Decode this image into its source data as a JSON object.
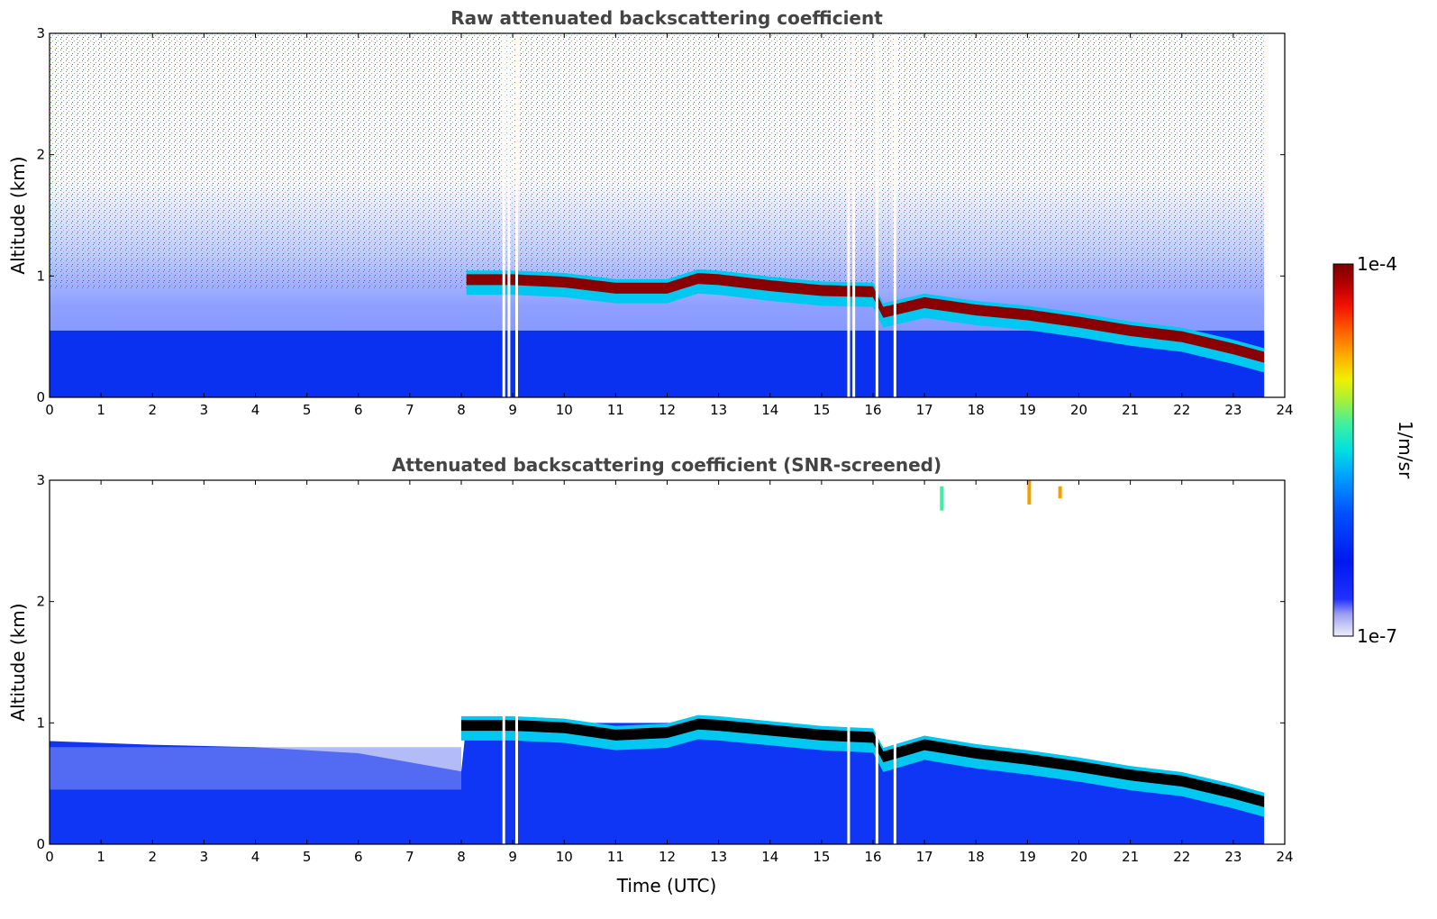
{
  "chart_data": [
    {
      "type": "heatmap",
      "title": "Raw attenuated backscattering coefficient",
      "xlabel": "",
      "ylabel": "Altitude (km)",
      "xlim": [
        0,
        24
      ],
      "ylim": [
        0,
        3
      ],
      "x_ticks": [
        "0",
        "1",
        "2",
        "3",
        "4",
        "5",
        "6",
        "7",
        "8",
        "9",
        "10",
        "11",
        "12",
        "13",
        "14",
        "15",
        "16",
        "17",
        "18",
        "19",
        "20",
        "21",
        "22",
        "23",
        "24"
      ],
      "y_ticks": [
        "0",
        "1",
        "2",
        "3"
      ],
      "data_end_hour": 23.6,
      "cloud_layer": {
        "description": "strong backscatter layer (dark red)",
        "time_utc": [
          8.1,
          9.0,
          10.0,
          11.0,
          12.0,
          12.6,
          13.0,
          14.0,
          15.0,
          16.0,
          16.2,
          17.0,
          18.0,
          19.0,
          20.0,
          21.0,
          22.0,
          23.0,
          23.6
        ],
        "altitude_km": [
          0.97,
          0.97,
          0.95,
          0.9,
          0.9,
          0.98,
          0.97,
          0.92,
          0.88,
          0.87,
          0.7,
          0.78,
          0.72,
          0.68,
          0.62,
          0.55,
          0.5,
          0.4,
          0.33
        ]
      },
      "data_gaps_utc": [
        8.8,
        8.9,
        9.05,
        15.5,
        15.6,
        16.05,
        16.4
      ]
    },
    {
      "type": "heatmap",
      "title": "Attenuated backscattering coefficient (SNR-screened)",
      "xlabel": "Time (UTC)",
      "ylabel": "Altitude (km)",
      "xlim": [
        0,
        24
      ],
      "ylim": [
        0,
        3
      ],
      "x_ticks": [
        "0",
        "1",
        "2",
        "3",
        "4",
        "5",
        "6",
        "7",
        "8",
        "9",
        "10",
        "11",
        "12",
        "13",
        "14",
        "15",
        "16",
        "17",
        "18",
        "19",
        "20",
        "21",
        "22",
        "23",
        "24"
      ],
      "y_ticks": [
        "0",
        "1",
        "2",
        "3"
      ],
      "data_end_hour": 23.6,
      "cloud_layer": {
        "description": "strong backscatter layer (black, saturated)",
        "time_utc": [
          8.0,
          9.0,
          10.0,
          11.0,
          12.0,
          12.6,
          13.0,
          14.0,
          15.0,
          16.0,
          16.2,
          17.0,
          18.0,
          19.0,
          20.0,
          21.0,
          22.0,
          23.0,
          23.6
        ],
        "altitude_km": [
          0.98,
          0.98,
          0.96,
          0.9,
          0.92,
          0.99,
          0.98,
          0.94,
          0.9,
          0.88,
          0.72,
          0.82,
          0.75,
          0.7,
          0.64,
          0.57,
          0.52,
          0.42,
          0.35
        ]
      },
      "data_gaps_utc": [
        8.8,
        9.05,
        15.5,
        16.05,
        16.4
      ]
    }
  ],
  "colorbar": {
    "label": "1/m/sr",
    "max_label": "1e-4",
    "min_label": "1e-7",
    "scale": "log",
    "colors": [
      "#ededfa",
      "#c6c8f5",
      "#9a9df0",
      "#2030ff",
      "#0018f0",
      "#0050ff",
      "#00a0ff",
      "#00e0e0",
      "#40f0a0",
      "#a0f040",
      "#f0f000",
      "#ffb000",
      "#ff6000",
      "#f01000",
      "#b00000",
      "#7a0000"
    ]
  }
}
